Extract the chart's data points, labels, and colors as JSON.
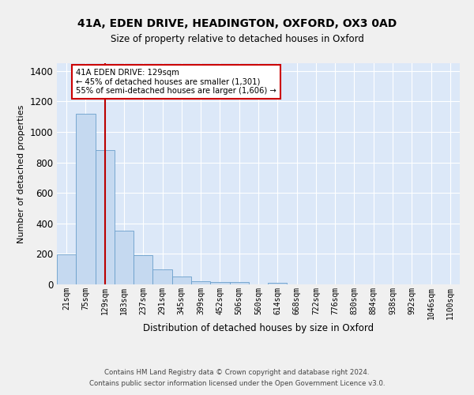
{
  "title_line1": "41A, EDEN DRIVE, HEADINGTON, OXFORD, OX3 0AD",
  "title_line2": "Size of property relative to detached houses in Oxford",
  "xlabel": "Distribution of detached houses by size in Oxford",
  "ylabel": "Number of detached properties",
  "categories": [
    "21sqm",
    "75sqm",
    "129sqm",
    "183sqm",
    "237sqm",
    "291sqm",
    "345sqm",
    "399sqm",
    "452sqm",
    "506sqm",
    "560sqm",
    "614sqm",
    "668sqm",
    "722sqm",
    "776sqm",
    "830sqm",
    "884sqm",
    "938sqm",
    "992sqm",
    "1046sqm",
    "1100sqm"
  ],
  "values": [
    197,
    1120,
    880,
    350,
    192,
    100,
    52,
    22,
    17,
    15,
    0,
    12,
    0,
    0,
    0,
    0,
    0,
    0,
    0,
    0,
    0
  ],
  "bar_color": "#c5d9f0",
  "bar_edge_color": "#6a9fcb",
  "vline_x": 2,
  "vline_color": "#bb0000",
  "annotation_text": "41A EDEN DRIVE: 129sqm\n← 45% of detached houses are smaller (1,301)\n55% of semi-detached houses are larger (1,606) →",
  "annotation_box_color": "#ffffff",
  "annotation_box_edge_color": "#cc0000",
  "ylim": [
    0,
    1450
  ],
  "yticks": [
    0,
    200,
    400,
    600,
    800,
    1000,
    1200,
    1400
  ],
  "background_color": "#dce8f8",
  "fig_background_color": "#f0f0f0",
  "footer_line1": "Contains HM Land Registry data © Crown copyright and database right 2024.",
  "footer_line2": "Contains public sector information licensed under the Open Government Licence v3.0."
}
